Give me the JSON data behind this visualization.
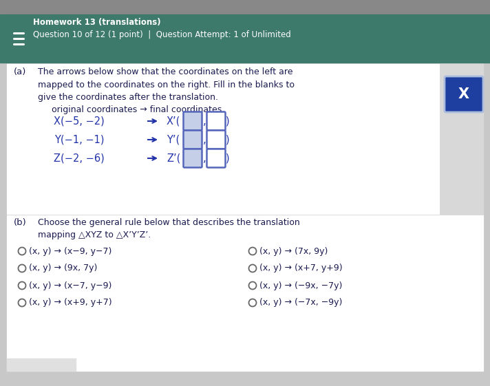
{
  "header_bg": "#3d7a6b",
  "header_text_color": "#ffffff",
  "header_line1": "Homework 13 (translations)",
  "header_line2": "Question 10 of 12 (1 point)  |  Question Attempt: 1 of Unlimited",
  "body_bg": "#c8c8c8",
  "section_a_desc": "The arrows below show that the coordinates on the left are\nmapped to the coordinates on the right. Fill in the blanks to\ngive the coordinates after the translation.",
  "orig_final_label": "original coordinates → final coordinates",
  "coord_left": [
    "X(−5, −2)",
    "Y(−1, −1)",
    "Z(−2, −6)"
  ],
  "coord_right_label": [
    "X’(",
    "Y’(",
    "Z’("
  ],
  "section_b_desc": "Choose the general rule below that describes the translation\nmapping △XYZ to △X’Y’Z’.",
  "radio_options_col1": [
    "(x, y) → (x−9, y−7)",
    "(x, y) → (9x, 7y)",
    "(x, y) → (x−7, y−9)",
    "(x, y) → (x+9, y+7)"
  ],
  "radio_options_col2": [
    "(x, y) → (7x, 9y)",
    "(x, y) → (x+7, y+9)",
    "(x, y) → (−9x, −7y)",
    "(x, y) → (−7x, −9y)"
  ],
  "x_button_color": "#1e3fa0",
  "x_button_text": "X",
  "text_dark": "#1a1a50",
  "text_blue": "#2233aa",
  "box_fill1": "#c5cfe8",
  "box_fill2": "#ffffff",
  "box_edge": "#5566bb"
}
